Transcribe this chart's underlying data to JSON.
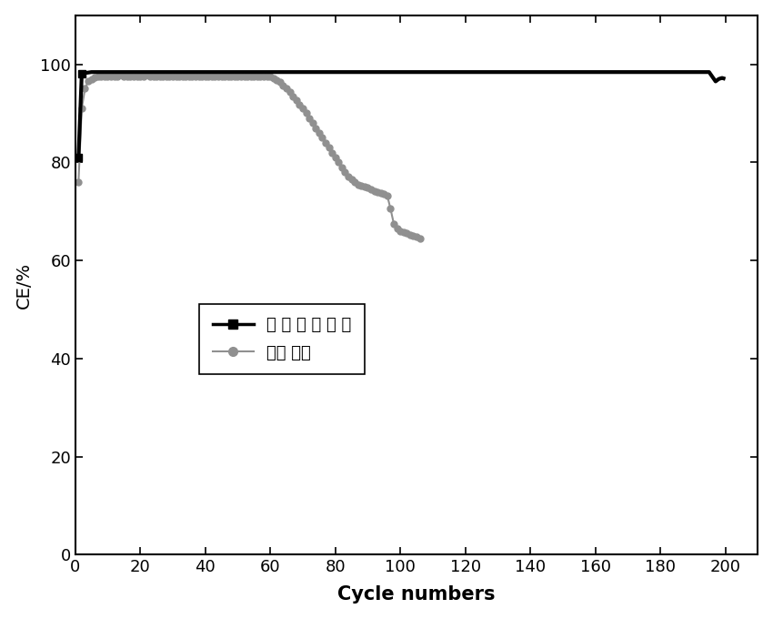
{
  "title": "",
  "xlabel": "Cycle numbers",
  "ylabel": "CE/%",
  "xlim": [
    0,
    210
  ],
  "ylim": [
    0,
    110
  ],
  "xticks": [
    0,
    20,
    40,
    60,
    80,
    100,
    120,
    140,
    160,
    180,
    200
  ],
  "yticks": [
    0,
    20,
    40,
    60,
    80,
    100
  ],
  "legend1_label": "含 氟 化 石 墨 烯",
  "legend2_label": "对比 实验",
  "line1_color": "#000000",
  "line2_color": "#909090",
  "background_color": "#ffffff",
  "series1_x": [
    1,
    2,
    3,
    4,
    5,
    6,
    7,
    8,
    9,
    10,
    12,
    15,
    18,
    20,
    25,
    30,
    35,
    40,
    45,
    50,
    55,
    60,
    65,
    70,
    75,
    80,
    85,
    90,
    95,
    100,
    105,
    110,
    115,
    120,
    125,
    130,
    135,
    140,
    145,
    150,
    155,
    160,
    165,
    170,
    175,
    180,
    185,
    190,
    195,
    197,
    198,
    199,
    200
  ],
  "series1_y": [
    81,
    98.0,
    98.2,
    98.3,
    98.4,
    98.4,
    98.4,
    98.4,
    98.4,
    98.4,
    98.4,
    98.4,
    98.4,
    98.4,
    98.4,
    98.4,
    98.4,
    98.4,
    98.4,
    98.4,
    98.4,
    98.4,
    98.4,
    98.4,
    98.4,
    98.4,
    98.4,
    98.4,
    98.4,
    98.4,
    98.4,
    98.4,
    98.4,
    98.4,
    98.4,
    98.4,
    98.4,
    98.4,
    98.4,
    98.4,
    98.4,
    98.4,
    98.4,
    98.4,
    98.4,
    98.4,
    98.4,
    98.4,
    98.4,
    96.5,
    97.0,
    97.2,
    97.0
  ],
  "series2_x": [
    1,
    2,
    3,
    4,
    5,
    6,
    7,
    8,
    9,
    10,
    11,
    12,
    13,
    14,
    15,
    16,
    17,
    18,
    19,
    20,
    21,
    22,
    23,
    24,
    25,
    26,
    27,
    28,
    29,
    30,
    31,
    32,
    33,
    34,
    35,
    36,
    37,
    38,
    39,
    40,
    41,
    42,
    43,
    44,
    45,
    46,
    47,
    48,
    49,
    50,
    51,
    52,
    53,
    54,
    55,
    56,
    57,
    58,
    59,
    60,
    61,
    62,
    63,
    64,
    65,
    66,
    67,
    68,
    69,
    70,
    71,
    72,
    73,
    74,
    75,
    76,
    77,
    78,
    79,
    80,
    81,
    82,
    83,
    84,
    85,
    86,
    87,
    88,
    89,
    90,
    91,
    92,
    93,
    94,
    95,
    96,
    97,
    98,
    99,
    100,
    101,
    102,
    103,
    104,
    105,
    106
  ],
  "series2_y": [
    76,
    91,
    95,
    96.5,
    97.0,
    97.3,
    97.5,
    97.5,
    97.5,
    97.5,
    97.5,
    97.5,
    97.5,
    97.8,
    97.5,
    97.5,
    97.5,
    97.5,
    97.5,
    97.5,
    97.5,
    97.8,
    97.5,
    97.5,
    97.5,
    97.5,
    97.5,
    97.5,
    97.5,
    97.5,
    97.5,
    97.5,
    97.5,
    97.5,
    97.5,
    97.5,
    97.5,
    97.5,
    97.5,
    97.5,
    97.5,
    97.5,
    97.5,
    97.5,
    97.5,
    97.5,
    97.5,
    97.5,
    97.5,
    97.5,
    97.5,
    97.5,
    97.5,
    97.5,
    97.5,
    97.5,
    97.5,
    97.5,
    97.5,
    97.5,
    97.2,
    96.8,
    96.3,
    95.7,
    95.0,
    94.3,
    93.5,
    92.7,
    91.8,
    91.0,
    90.0,
    89.0,
    88.0,
    87.0,
    86.0,
    85.0,
    84.0,
    83.0,
    82.0,
    81.0,
    80.0,
    79.0,
    78.0,
    77.0,
    76.5,
    76.0,
    75.5,
    75.2,
    75.0,
    74.8,
    74.5,
    74.2,
    74.0,
    73.8,
    73.5,
    73.2,
    70.5,
    67.5,
    66.5,
    66.0,
    65.8,
    65.5,
    65.3,
    65.0,
    64.8,
    64.5
  ]
}
